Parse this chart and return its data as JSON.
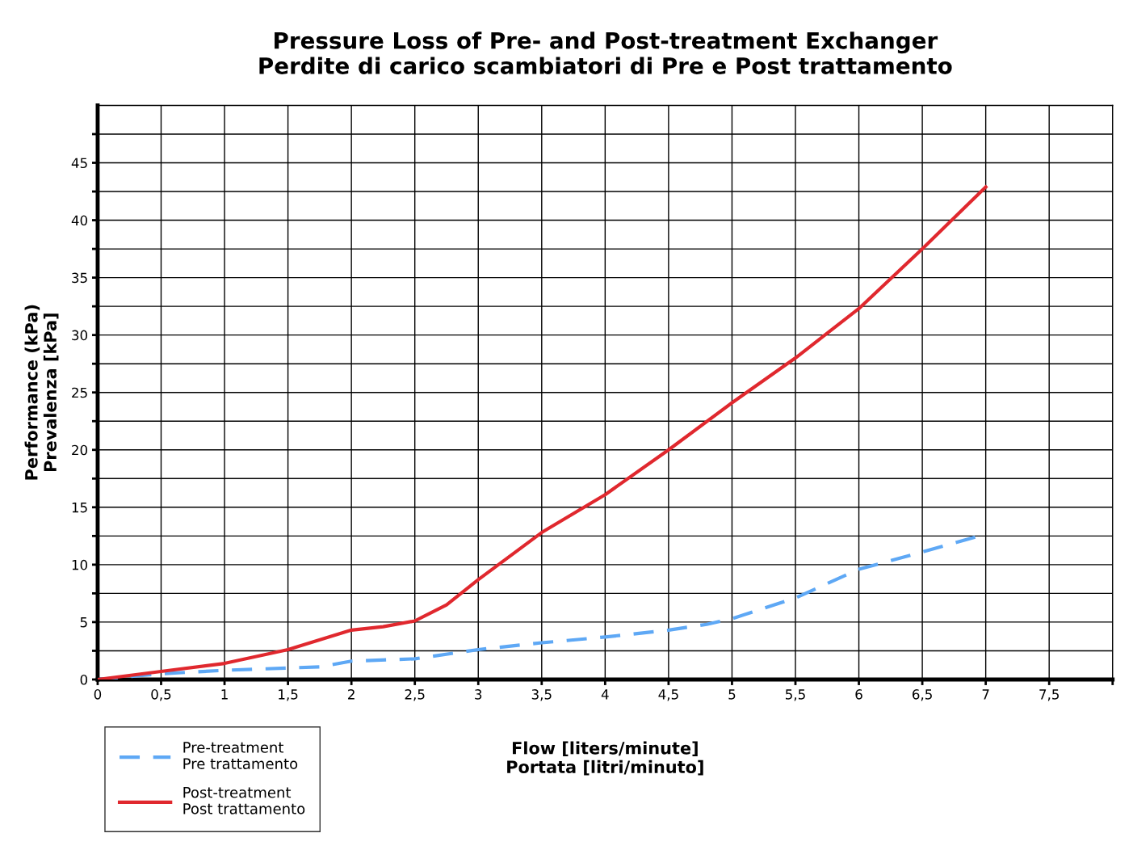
{
  "chart_data": {
    "type": "line",
    "title": "Pressure Loss of Pre- and Post-treatment Exchanger\nPerdite di carico scambiatori di Pre e Post trattamento",
    "xlabel": "Flow [liters/minute]\nPortata [litri/minuto]",
    "ylabel": "Performance (kPa)\nPrevalenza [kPa]",
    "series": [
      {
        "name": "Pre-treatment\nPre trattamento",
        "color": "#5ea8f5",
        "line_style": "dashed",
        "x": [
          0,
          0.5,
          1,
          1.5,
          1.75,
          2,
          2.5,
          3,
          3.5,
          4,
          4.5,
          4.8,
          5,
          5.5,
          6,
          6.5,
          6.95
        ],
        "values": [
          0,
          0.5,
          0.8,
          1.0,
          1.1,
          1.6,
          1.8,
          2.6,
          3.2,
          3.7,
          4.3,
          4.8,
          5.3,
          7.1,
          9.6,
          11.1,
          12.5
        ]
      },
      {
        "name": "Post-treatment\nPost trattamento",
        "color": "#e0282e",
        "line_style": "solid",
        "x": [
          0,
          0.5,
          1,
          1.5,
          2,
          2.25,
          2.5,
          2.75,
          3,
          3.5,
          4,
          4.5,
          5,
          5.5,
          6,
          6.5,
          7
        ],
        "values": [
          0,
          0.7,
          1.4,
          2.6,
          4.3,
          4.6,
          5.1,
          6.5,
          8.7,
          12.8,
          16.1,
          20,
          24.1,
          28,
          32.3,
          37.5,
          42.9
        ]
      }
    ],
    "xlim": [
      0,
      8
    ],
    "xticks": [
      0,
      {
        "value": 0.5,
        "label": "0,5"
      },
      1,
      {
        "value": 1.5,
        "label": "1,5"
      },
      2,
      {
        "value": 2.5,
        "label": "2,5"
      },
      3,
      {
        "value": 3.5,
        "label": "3,5"
      },
      4,
      {
        "value": 4.5,
        "label": "4,5"
      },
      5,
      {
        "value": 5.5,
        "label": "5,5"
      },
      6,
      {
        "value": 6.5,
        "label": "6,5"
      },
      7,
      {
        "value": 7.5,
        "label": "7,5"
      },
      {
        "value": 8,
        "label": null
      }
    ],
    "ylim": [
      0,
      50
    ],
    "yticks": [
      0,
      {
        "value": 2.5,
        "label": null
      },
      5,
      {
        "value": 7.5,
        "label": null
      },
      10,
      {
        "value": 12.5,
        "label": null
      },
      15,
      {
        "value": 17.5,
        "label": null
      },
      20,
      {
        "value": 22.5,
        "label": null
      },
      25,
      {
        "value": 27.5,
        "label": null
      },
      30,
      {
        "value": 32.5,
        "label": null
      },
      35,
      {
        "value": 37.5,
        "label": null
      },
      40,
      {
        "value": 42.5,
        "label": null
      },
      45,
      {
        "value": 47.5,
        "label": null
      }
    ],
    "grid": true,
    "legend": "bottom left",
    "marker": "none"
  }
}
